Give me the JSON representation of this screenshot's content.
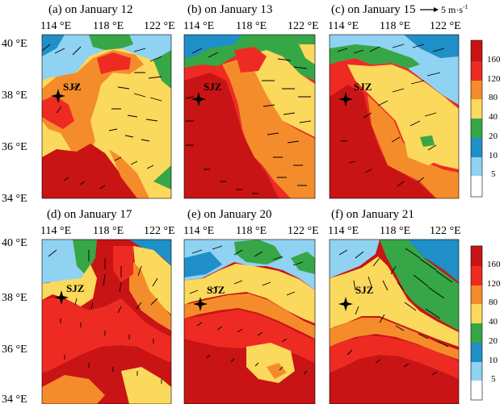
{
  "panels": [
    {
      "title": "(a) on January 12"
    },
    {
      "title": "(b) on January 13"
    },
    {
      "title": "(c) on January 15"
    },
    {
      "title": "(d) on January 17"
    },
    {
      "title": "(e) on January 20"
    },
    {
      "title": "(f) on January 21"
    }
  ],
  "lon_ticks": [
    "114 °E",
    "118 °E",
    "122 °E"
  ],
  "lat_ticks": [
    "40 °E",
    "38 °E",
    "36 °E",
    "34 °E"
  ],
  "station_label": "SJZ",
  "wind_reference": "5 m·s",
  "wind_reference_exp": "-1",
  "colorbar": {
    "ticks": [
      "160",
      "120",
      "80",
      "40",
      "20",
      "10",
      "5"
    ],
    "colors": [
      "#c81414",
      "#ee2b23",
      "#f58c2c",
      "#fbd95c",
      "#37a646",
      "#1f8fc8",
      "#8fd2f2",
      "#ffffff"
    ]
  },
  "palette": {
    "dark_red": "#c81414",
    "red": "#ee2b23",
    "orange": "#f58c2c",
    "yellow": "#fbd95c",
    "green": "#37a646",
    "blue": "#1f8fc8",
    "light_blue": "#8fd2f2",
    "white": "#ffffff"
  }
}
